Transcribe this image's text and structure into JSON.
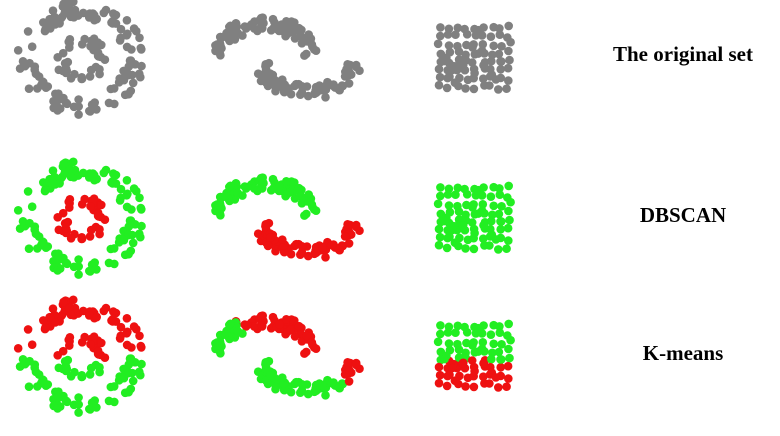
{
  "title": "",
  "columns": [
    "concentric-circles",
    "half-moons",
    "square-grid"
  ],
  "rows": [
    {
      "label": "The original set",
      "method": "original"
    },
    {
      "label": "DBSCAN",
      "method": "dbscan"
    },
    {
      "label": "K-means",
      "method": "kmeans"
    }
  ],
  "colors": {
    "unclustered": "#808080",
    "cluster_a": "#22ee22",
    "cluster_b": "#ee1111"
  }
}
